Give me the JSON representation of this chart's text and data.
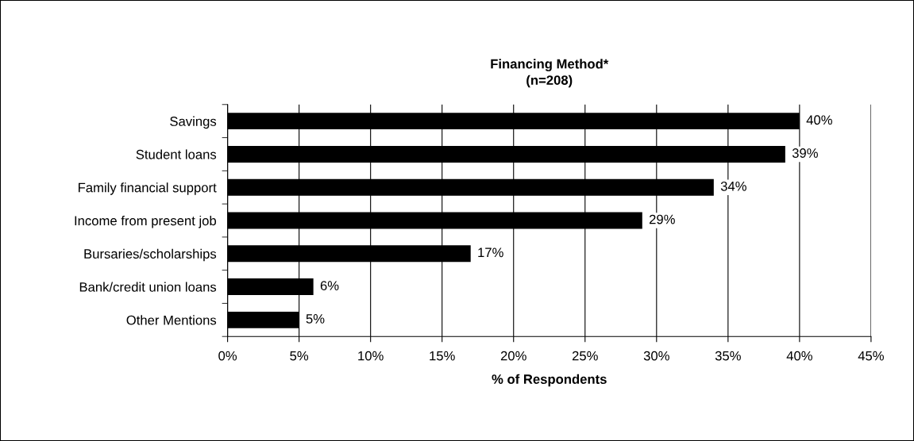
{
  "chart_data": {
    "type": "bar",
    "orientation": "horizontal",
    "title": "Financing Method*\n(n=208)",
    "xlabel": "% of Respondents",
    "categories": [
      "Savings",
      "Student loans",
      "Family financial support",
      "Income from present job",
      "Bursaries/scholarships",
      "Bank/credit union loans",
      "Other Mentions"
    ],
    "values": [
      40,
      39,
      34,
      29,
      17,
      6,
      5
    ],
    "value_labels": [
      "40%",
      "39%",
      "34%",
      "29%",
      "17%",
      "6%",
      "5%"
    ],
    "color": "#000000",
    "xlim": [
      0,
      45
    ],
    "xticks": [
      {
        "value": 0,
        "label": "0%"
      },
      {
        "value": 5,
        "label": "5%"
      },
      {
        "value": 10,
        "label": "10%"
      },
      {
        "value": 15,
        "label": "15%"
      },
      {
        "value": 20,
        "label": "20%"
      },
      {
        "value": 25,
        "label": "25%"
      },
      {
        "value": 30,
        "label": "30%"
      },
      {
        "value": 35,
        "label": "35%"
      },
      {
        "value": 40,
        "label": "40%"
      },
      {
        "value": 45,
        "label": "45%"
      }
    ],
    "grid": "x",
    "legend": false
  }
}
